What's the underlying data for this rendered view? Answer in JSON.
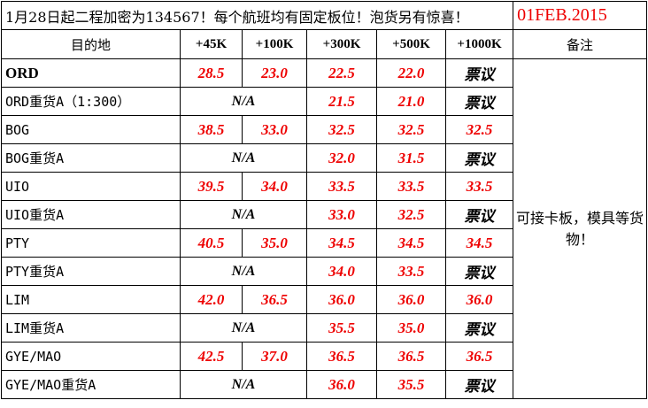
{
  "title": "1月28日起二程加密为134567！每个航班均有固定板位！泡货另有惊喜！",
  "date": "01FEB.2015",
  "headers": [
    "目的地",
    "+45K",
    "+100K",
    "+300K",
    "+500K",
    "+1000K",
    "备注"
  ],
  "note": "可接卡板，模具等货物！",
  "rows": [
    {
      "dest": "ORD",
      "bold": true,
      "v": [
        "28.5",
        "23.0",
        "22.5",
        "22.0",
        "票议"
      ]
    },
    {
      "dest": "ORD重货A（1:300）",
      "na": "N/A",
      "v": [
        "21.5",
        "21.0",
        "票议"
      ]
    },
    {
      "dest": "BOG",
      "v": [
        "38.5",
        "33.0",
        "32.5",
        "32.5",
        "32.5"
      ]
    },
    {
      "dest": "BOG重货A",
      "na": "N/A",
      "v": [
        "32.0",
        "31.5",
        "票议"
      ]
    },
    {
      "dest": "UIO",
      "v": [
        "39.5",
        "34.0",
        "33.5",
        "33.5",
        "33.5"
      ]
    },
    {
      "dest": "UIO重货A",
      "na": "N/A",
      "v": [
        "33.0",
        "32.5",
        "票议"
      ]
    },
    {
      "dest": "PTY",
      "v": [
        "40.5",
        "35.0",
        "34.5",
        "34.5",
        "34.5"
      ]
    },
    {
      "dest": "PTY重货A",
      "na": "N/A",
      "v": [
        "34.0",
        "33.5",
        "票议"
      ]
    },
    {
      "dest": "LIM",
      "v": [
        "42.0",
        "36.5",
        "36.0",
        "36.0",
        "36.0"
      ]
    },
    {
      "dest": "LIM重货A",
      "na": "N/A",
      "v": [
        "35.5",
        "35.0",
        "票议"
      ]
    },
    {
      "dest": "GYE/MAO",
      "v": [
        "42.5",
        "37.0",
        "36.5",
        "36.5",
        "36.5"
      ]
    },
    {
      "dest": "GYE/MAO重货A",
      "na": "N/A",
      "v": [
        "36.0",
        "35.5",
        "票议"
      ]
    }
  ]
}
